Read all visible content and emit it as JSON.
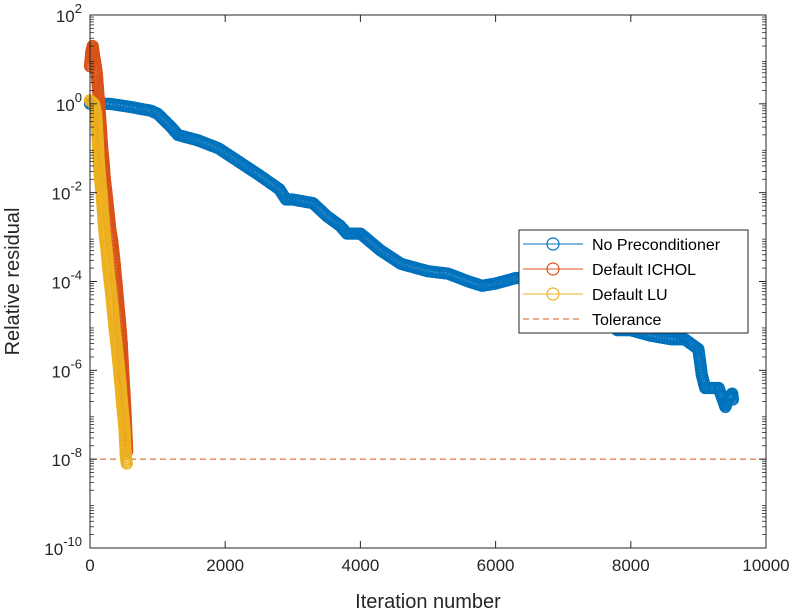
{
  "chart_data": {
    "type": "scatter",
    "title": "",
    "xlabel": "Iteration number",
    "ylabel": "Relative residual",
    "xlim": [
      0,
      10000
    ],
    "ylim_log10": [
      -10,
      2
    ],
    "yscale": "log",
    "grid": false,
    "legend_position": "east",
    "x_ticks": [
      "0",
      "2000",
      "4000",
      "6000",
      "8000",
      "10000"
    ],
    "y_ticks": [
      {
        "base": "10",
        "exp": "2"
      },
      {
        "base": "10",
        "exp": "0"
      },
      {
        "base": "10",
        "exp": "-2"
      },
      {
        "base": "10",
        "exp": "-4"
      },
      {
        "base": "10",
        "exp": "-6"
      },
      {
        "base": "10",
        "exp": "-8"
      },
      {
        "base": "10",
        "exp": "-10"
      }
    ],
    "series": [
      {
        "name": "No Preconditioner",
        "color": "#0072BD",
        "marker": "circle",
        "points": [
          [
            0,
            1.0
          ],
          [
            300,
            1.0
          ],
          [
            600,
            0.85
          ],
          [
            900,
            0.7
          ],
          [
            1000,
            0.6
          ],
          [
            1200,
            0.3
          ],
          [
            1300,
            0.2
          ],
          [
            1600,
            0.15
          ],
          [
            1900,
            0.1
          ],
          [
            2200,
            0.05
          ],
          [
            2500,
            0.025
          ],
          [
            2800,
            0.012
          ],
          [
            2900,
            0.007
          ],
          [
            3000,
            0.007
          ],
          [
            3300,
            0.0058
          ],
          [
            3500,
            0.003
          ],
          [
            3700,
            0.0018
          ],
          [
            3800,
            0.0012
          ],
          [
            4000,
            0.0012
          ],
          [
            4300,
            0.0005
          ],
          [
            4600,
            0.00025
          ],
          [
            5000,
            0.00017
          ],
          [
            5300,
            0.00015
          ],
          [
            5600,
            0.0001
          ],
          [
            5800,
            8e-05
          ],
          [
            6000,
            9e-05
          ],
          [
            6300,
            0.00012
          ],
          [
            6600,
            0.00012
          ],
          [
            6900,
            7e-05
          ],
          [
            7200,
            4e-05
          ],
          [
            7500,
            2.5e-05
          ],
          [
            7700,
            1.2e-05
          ],
          [
            7800,
            8e-06
          ],
          [
            8000,
            8e-06
          ],
          [
            8300,
            6e-06
          ],
          [
            8600,
            5e-06
          ],
          [
            8800,
            5e-06
          ],
          [
            9000,
            3e-06
          ],
          [
            9050,
            8e-07
          ],
          [
            9100,
            4e-07
          ],
          [
            9300,
            4e-07
          ],
          [
            9400,
            1.5e-07
          ],
          [
            9450,
            2.5e-07
          ],
          [
            9500,
            3e-07
          ],
          [
            9510,
            2.2e-07
          ]
        ]
      },
      {
        "name": "Default ICHOL",
        "color": "#D95319",
        "marker": "circle",
        "points": [
          [
            0,
            7
          ],
          [
            20,
            15
          ],
          [
            40,
            20
          ],
          [
            60,
            12
          ],
          [
            80,
            8
          ],
          [
            100,
            5
          ],
          [
            120,
            2
          ],
          [
            140,
            0.8
          ],
          [
            160,
            0.3
          ],
          [
            180,
            0.1
          ],
          [
            200,
            0.05
          ],
          [
            220,
            0.02
          ],
          [
            250,
            0.008
          ],
          [
            280,
            0.003
          ],
          [
            300,
            0.0015
          ],
          [
            330,
            0.0008
          ],
          [
            360,
            0.0003
          ],
          [
            390,
            0.0001
          ],
          [
            420,
            3e-05
          ],
          [
            450,
            1e-05
          ],
          [
            470,
            4e-06
          ],
          [
            490,
            1e-06
          ],
          [
            510,
            3e-07
          ],
          [
            530,
            8e-08
          ],
          [
            550,
            1.5e-08
          ]
        ]
      },
      {
        "name": "Default LU",
        "color": "#EDB120",
        "marker": "circle",
        "points": [
          [
            0,
            1.2
          ],
          [
            30,
            1.1
          ],
          [
            60,
            1.0
          ],
          [
            90,
            0.6
          ],
          [
            110,
            0.2
          ],
          [
            130,
            0.05
          ],
          [
            150,
            0.02
          ],
          [
            170,
            0.01
          ],
          [
            190,
            0.004
          ],
          [
            210,
            0.0015
          ],
          [
            240,
            0.0006
          ],
          [
            270,
            0.0002
          ],
          [
            300,
            8e-05
          ],
          [
            330,
            3e-05
          ],
          [
            360,
            1e-05
          ],
          [
            390,
            4e-06
          ],
          [
            420,
            1.5e-06
          ],
          [
            450,
            5e-07
          ],
          [
            480,
            1.5e-07
          ],
          [
            510,
            5e-08
          ],
          [
            530,
            1.2e-08
          ],
          [
            545,
            8e-09
          ]
        ]
      }
    ],
    "reference_lines": [
      {
        "name": "Tolerance",
        "y": 1e-08,
        "color": "#D95319",
        "style": "dashed"
      }
    ]
  }
}
